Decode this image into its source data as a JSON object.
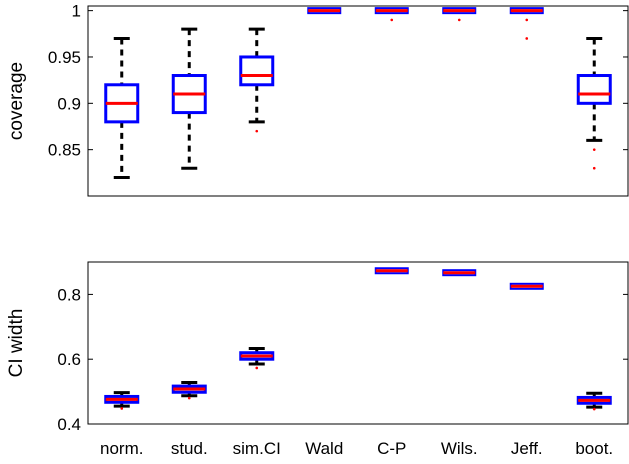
{
  "chart_data": [
    {
      "type": "box",
      "ylabel": "coverage",
      "ylim": [
        0.8,
        1.005
      ],
      "yticks": [
        0.85,
        0.9,
        0.95,
        1
      ],
      "ytick_labels": [
        "0.85",
        "0.9",
        "0.95",
        "1"
      ],
      "categories": [
        "norm.",
        "stud.",
        "sim.CI",
        "Wald",
        "C-P",
        "Wils.",
        "Jeff.",
        "boot."
      ],
      "boxes": [
        {
          "whisker_low": 0.82,
          "q1": 0.88,
          "median": 0.9,
          "q3": 0.92,
          "whisker_high": 0.97,
          "outliers": []
        },
        {
          "whisker_low": 0.83,
          "q1": 0.89,
          "median": 0.91,
          "q3": 0.93,
          "whisker_high": 0.98,
          "outliers": []
        },
        {
          "whisker_low": 0.88,
          "q1": 0.92,
          "median": 0.93,
          "q3": 0.95,
          "whisker_high": 0.98,
          "outliers": [
            0.87
          ]
        },
        {
          "whisker_low": 1.0,
          "q1": 1.0,
          "median": 1.0,
          "q3": 1.0,
          "whisker_high": 1.0,
          "outliers": []
        },
        {
          "whisker_low": 1.0,
          "q1": 1.0,
          "median": 1.0,
          "q3": 1.0,
          "whisker_high": 1.0,
          "outliers": [
            0.99
          ]
        },
        {
          "whisker_low": 1.0,
          "q1": 1.0,
          "median": 1.0,
          "q3": 1.0,
          "whisker_high": 1.0,
          "outliers": [
            0.99
          ]
        },
        {
          "whisker_low": 1.0,
          "q1": 1.0,
          "median": 1.0,
          "q3": 1.0,
          "whisker_high": 1.0,
          "outliers": [
            0.99,
            0.97
          ]
        },
        {
          "whisker_low": 0.86,
          "q1": 0.9,
          "median": 0.91,
          "q3": 0.93,
          "whisker_high": 0.97,
          "outliers": [
            0.85,
            0.83
          ]
        }
      ]
    },
    {
      "type": "box",
      "ylabel": "CI width",
      "ylim": [
        0.4,
        0.9
      ],
      "yticks": [
        0.4,
        0.6,
        0.8
      ],
      "ytick_labels": [
        "0.4",
        "0.6",
        "0.8"
      ],
      "categories": [
        "norm.",
        "stud.",
        "sim.CI",
        "Wald",
        "C-P",
        "Wils.",
        "Jeff.",
        "boot."
      ],
      "xtick_labels": [
        "norm.",
        "stud.",
        "sim.CI",
        "Wald",
        "C-P",
        "Wils.",
        "Jeff.",
        "boot."
      ],
      "boxes": [
        {
          "whisker_low": 0.455,
          "q1": 0.467,
          "median": 0.476,
          "q3": 0.485,
          "whisker_high": 0.497,
          "outliers": [
            0.448
          ]
        },
        {
          "whisker_low": 0.487,
          "q1": 0.498,
          "median": 0.508,
          "q3": 0.517,
          "whisker_high": 0.528,
          "outliers": [
            0.48
          ]
        },
        {
          "whisker_low": 0.585,
          "q1": 0.6,
          "median": 0.61,
          "q3": 0.62,
          "whisker_high": 0.633,
          "outliers": [
            0.573
          ]
        },
        null,
        {
          "whisker_low": 0.871,
          "q1": 0.872,
          "median": 0.873,
          "q3": 0.874,
          "whisker_high": 0.875,
          "outliers": []
        },
        {
          "whisker_low": 0.865,
          "q1": 0.866,
          "median": 0.867,
          "q3": 0.868,
          "whisker_high": 0.869,
          "outliers": []
        },
        {
          "whisker_low": 0.823,
          "q1": 0.824,
          "median": 0.825,
          "q3": 0.826,
          "whisker_high": 0.827,
          "outliers": []
        },
        {
          "whisker_low": 0.452,
          "q1": 0.464,
          "median": 0.473,
          "q3": 0.482,
          "whisker_high": 0.495,
          "outliers": [
            0.446
          ]
        }
      ]
    }
  ],
  "colors": {
    "box": "#0000ff",
    "median": "#ff0000",
    "whisker": "#000000",
    "outlier": "#ff0000",
    "axis": "#000000"
  }
}
